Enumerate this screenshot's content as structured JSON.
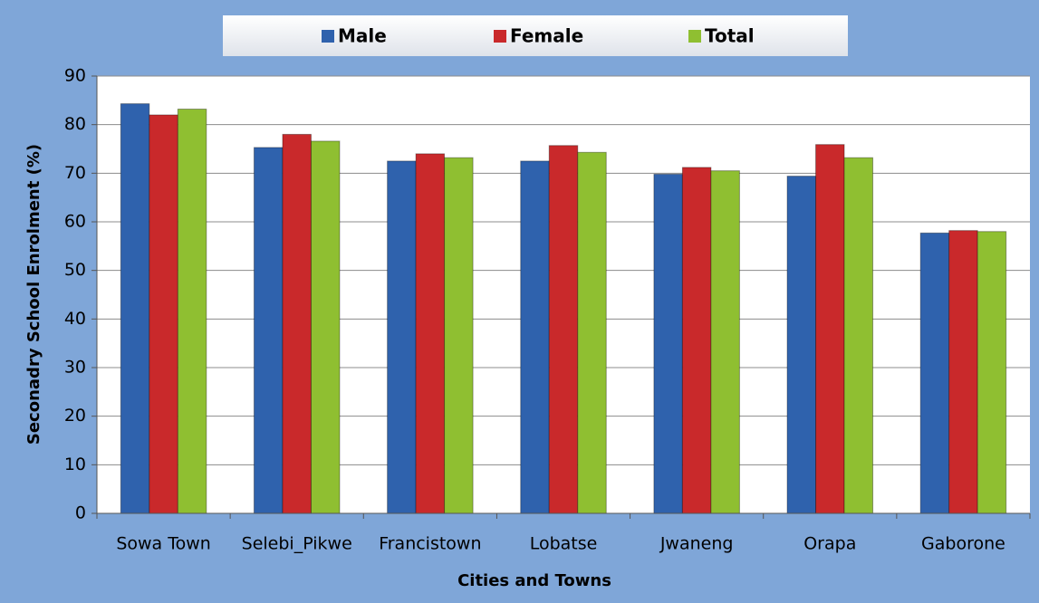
{
  "chart_data": {
    "type": "bar",
    "x_label": "Cities and Towns",
    "y_label": "Seconadry School Enrolment (%)",
    "categories": [
      "Sowa Town",
      "Selebi_Pikwe",
      "Francistown",
      "Lobatse",
      "Jwaneng",
      "Orapa",
      "Gaborone"
    ],
    "series": [
      {
        "name": "Male",
        "color": "#2f62ad",
        "values": [
          84.3,
          75.3,
          72.5,
          72.5,
          69.8,
          69.4,
          57.7
        ]
      },
      {
        "name": "Female",
        "color": "#c9292b",
        "values": [
          82,
          78,
          74,
          75.7,
          71.2,
          75.9,
          58.2
        ]
      },
      {
        "name": "Total",
        "color": "#8fbf31",
        "values": [
          83.2,
          76.6,
          73.2,
          74.3,
          70.5,
          73.2,
          58
        ]
      }
    ],
    "ylim": [
      0,
      90
    ],
    "yticks": [
      0,
      10,
      20,
      30,
      40,
      50,
      60,
      70,
      80,
      90
    ],
    "grid": true,
    "legend": "top"
  }
}
